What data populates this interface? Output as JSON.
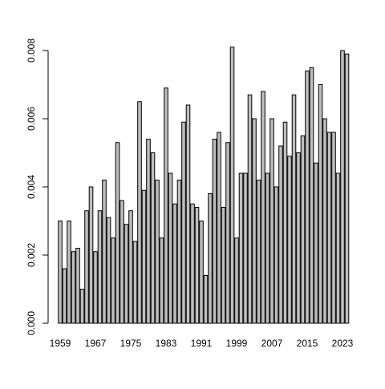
{
  "chart_data": {
    "type": "bar",
    "categories": [
      "1959",
      null,
      null,
      null,
      null,
      null,
      null,
      null,
      "1967",
      null,
      null,
      null,
      null,
      null,
      null,
      null,
      "1975",
      null,
      null,
      null,
      null,
      null,
      null,
      null,
      "1983",
      null,
      null,
      null,
      null,
      null,
      null,
      null,
      "1991",
      null,
      null,
      null,
      null,
      null,
      null,
      null,
      "1999",
      null,
      null,
      null,
      null,
      null,
      null,
      null,
      "2007",
      null,
      null,
      null,
      null,
      null,
      null,
      null,
      "2015",
      null,
      null,
      null,
      null,
      null,
      null,
      null,
      "2023",
      null
    ],
    "values": [
      0.003,
      0.0016,
      0.003,
      0.0021,
      0.0022,
      0.001,
      0.0033,
      0.004,
      0.0021,
      0.0033,
      0.0042,
      0.0031,
      0.0025,
      0.0053,
      0.0036,
      0.0029,
      0.0033,
      0.0024,
      0.0065,
      0.0039,
      0.0054,
      0.005,
      0.0042,
      0.0025,
      0.0069,
      0.0044,
      0.0035,
      0.0042,
      0.0059,
      0.0064,
      0.0035,
      0.0034,
      0.003,
      0.0014,
      0.0038,
      0.0054,
      0.0056,
      0.0034,
      0.0053,
      0.0081,
      0.0025,
      0.0044,
      0.0044,
      0.0067,
      0.006,
      0.0042,
      0.0068,
      0.0044,
      0.006,
      0.004,
      0.0052,
      0.0059,
      0.0049,
      0.0067,
      0.005,
      0.0055,
      0.0074,
      0.0075,
      0.0047,
      0.007,
      0.006,
      0.0056,
      0.0056,
      0.0044,
      0.008,
      0.0079
    ],
    "color": "#bebebe",
    "ylim": [
      0,
      0.0081
    ],
    "yticks": [
      {
        "value": 0,
        "label": "0.000"
      },
      0.002,
      0.004,
      0.006,
      0.008
    ]
  }
}
